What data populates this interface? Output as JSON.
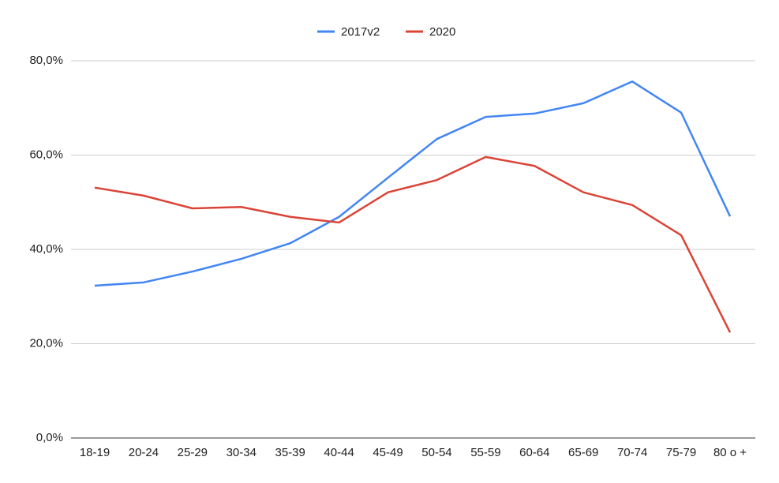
{
  "chart_data": {
    "type": "line",
    "categories": [
      "18-19",
      "20-24",
      "25-29",
      "30-34",
      "35-39",
      "40-44",
      "45-49",
      "50-54",
      "55-59",
      "60-64",
      "65-69",
      "70-74",
      "75-79",
      "80 o +"
    ],
    "series": [
      {
        "name": "2017v2",
        "color": "#4285f4",
        "values": [
          32.3,
          33.0,
          35.3,
          38.0,
          41.3,
          46.9,
          55.2,
          63.4,
          68.1,
          68.8,
          71.0,
          75.6,
          69.0,
          47.0
        ]
      },
      {
        "name": "2020",
        "color": "#db4437",
        "values": [
          53.1,
          51.4,
          48.7,
          49.0,
          46.9,
          45.7,
          52.1,
          54.7,
          59.6,
          57.7,
          52.1,
          49.4,
          43.0,
          22.4
        ]
      }
    ],
    "ylim": [
      0,
      80
    ],
    "yticks": [
      {
        "value": 0,
        "label": "0,0%"
      },
      {
        "value": 20,
        "label": "20,0%"
      },
      {
        "value": 40,
        "label": "40,0%"
      },
      {
        "value": 60,
        "label": "60,0%"
      },
      {
        "value": 80,
        "label": "80,0%"
      }
    ],
    "grid": true,
    "legend": "top"
  }
}
